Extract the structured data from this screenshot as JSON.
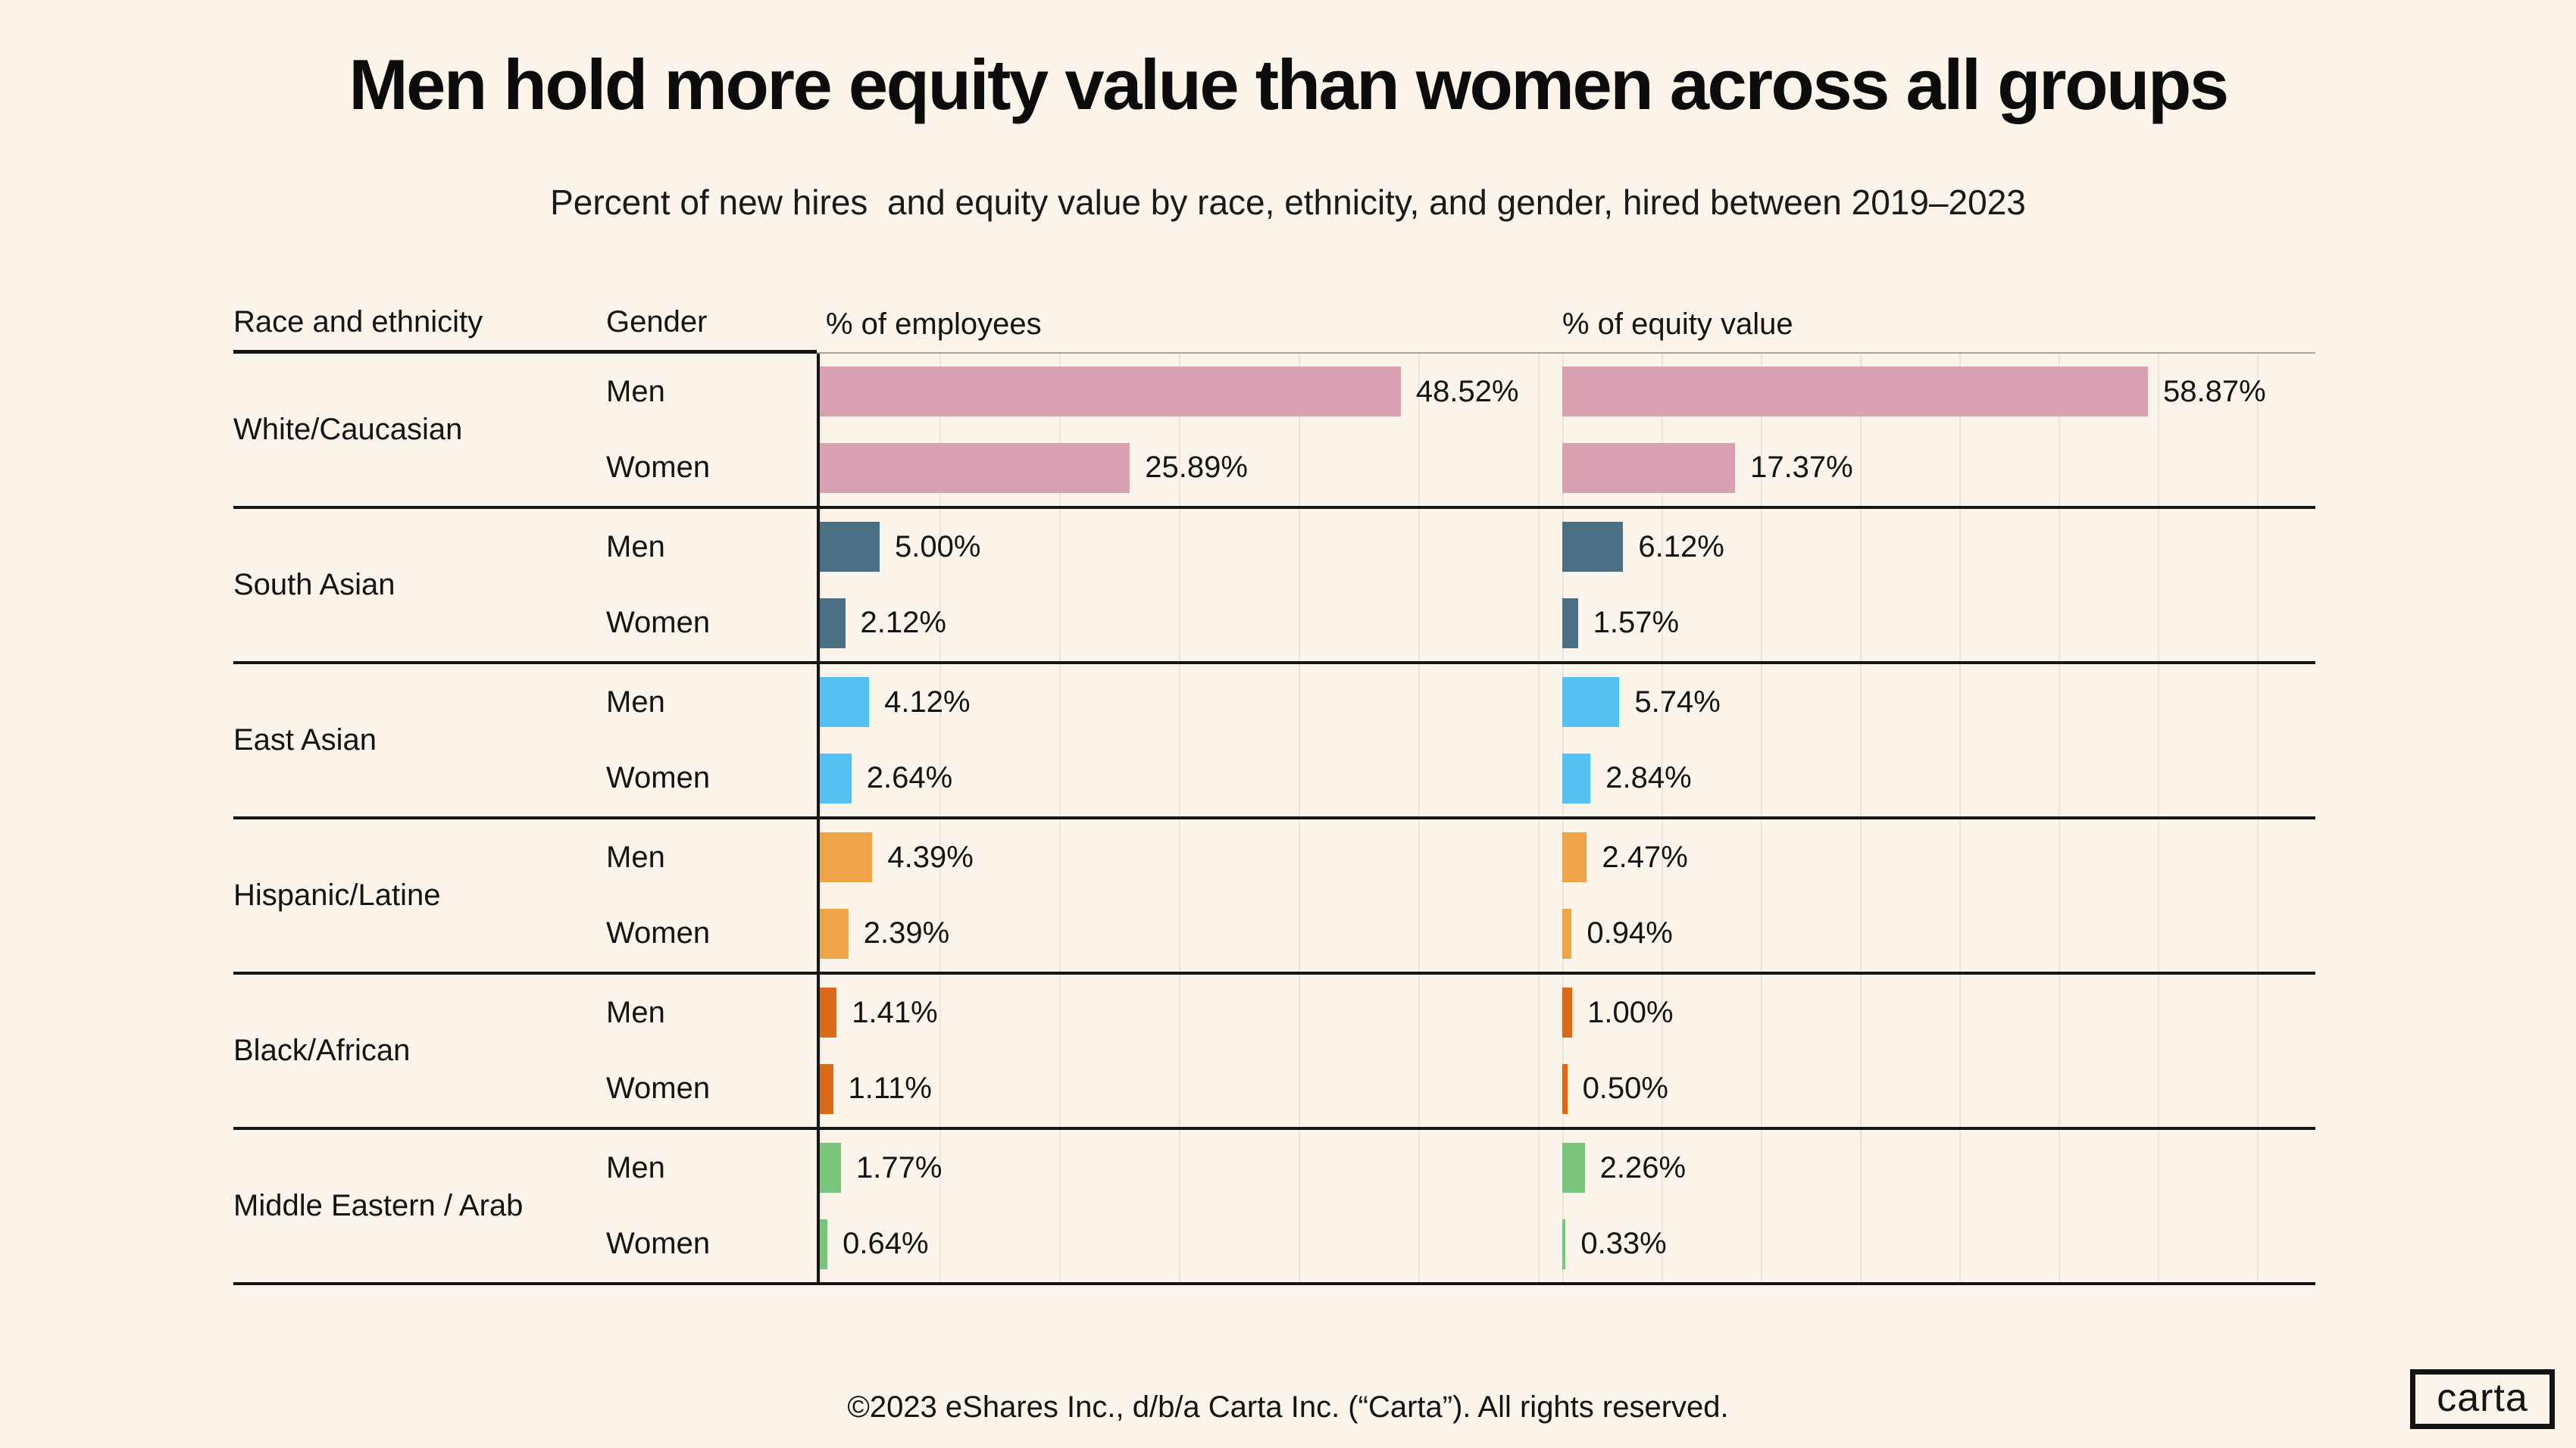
{
  "title": "Men hold more equity value than women across all groups",
  "subtitle": "Percent of new hires  and equity value by race, ethnicity, and gender, hired between 2019–2023",
  "columns": {
    "race": "Race and ethnicity",
    "gender": "Gender",
    "employees": "% of employees",
    "equity": "% of equity value"
  },
  "footer": "©2023 eShares Inc., d/b/a Carta Inc. (“Carta”). All rights reserved.",
  "logo_text": "carta",
  "colors": {
    "background": "#faf4ea",
    "rule_dark": "#161616",
    "rule_light": "#aaa49a",
    "gridline": "#ece6da"
  },
  "chart_data": {
    "type": "bar",
    "orientation": "horizontal",
    "value_suffix": "%",
    "axes": {
      "employees_axis_max": 62,
      "equity_axis_max": 75.7,
      "grid_step_percent": 10
    },
    "groups": [
      {
        "race": "White/Caucasian",
        "color": "#d8a2b3",
        "rows": [
          {
            "gender": "Men",
            "employees": 48.52,
            "equity": 58.87
          },
          {
            "gender": "Women",
            "employees": 25.89,
            "equity": 17.37
          }
        ]
      },
      {
        "race": "South Asian",
        "color": "#4b7086",
        "rows": [
          {
            "gender": "Men",
            "employees": 5.0,
            "equity": 6.12
          },
          {
            "gender": "Women",
            "employees": 2.12,
            "equity": 1.57
          }
        ]
      },
      {
        "race": "East Asian",
        "color": "#54c1f0",
        "rows": [
          {
            "gender": "Men",
            "employees": 4.12,
            "equity": 5.74
          },
          {
            "gender": "Women",
            "employees": 2.64,
            "equity": 2.84
          }
        ]
      },
      {
        "race": "Hispanic/Latine",
        "color": "#f0a44a",
        "rows": [
          {
            "gender": "Men",
            "employees": 4.39,
            "equity": 2.47
          },
          {
            "gender": "Women",
            "employees": 2.39,
            "equity": 0.94
          }
        ]
      },
      {
        "race": "Black/African",
        "color": "#da6a1a",
        "rows": [
          {
            "gender": "Men",
            "employees": 1.41,
            "equity": 1.0
          },
          {
            "gender": "Women",
            "employees": 1.11,
            "equity": 0.5
          }
        ]
      },
      {
        "race": "Middle Eastern / Arab",
        "color": "#7ac47b",
        "rows": [
          {
            "gender": "Men",
            "employees": 1.77,
            "equity": 2.26
          },
          {
            "gender": "Women",
            "employees": 0.64,
            "equity": 0.33
          }
        ]
      }
    ]
  }
}
